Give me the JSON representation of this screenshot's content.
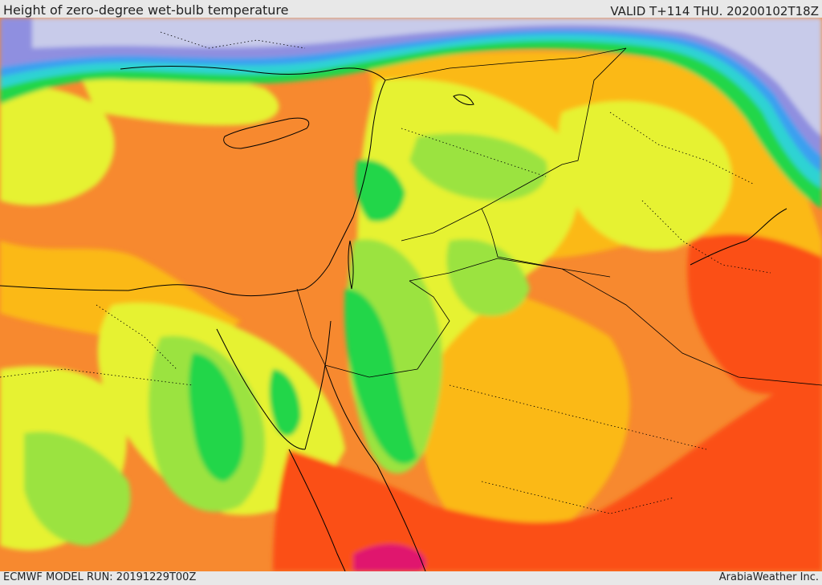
{
  "header": {
    "title": "Height of zero-degree wet-bulb temperature",
    "valid_time": "VALID T+114 THU. 20200102T18Z"
  },
  "footer": {
    "model_run": "ECMWF MODEL RUN: 20191229T00Z",
    "credit": "ArabiaWeather Inc."
  },
  "map": {
    "region": "Eastern Mediterranean and Middle East",
    "colors": {
      "lowest": "#c8cbea",
      "violet": "#8f8fe0",
      "blue": "#3aa0f0",
      "cyan": "#2ed3d3",
      "green": "#22d64a",
      "light_green": "#9be340",
      "yellow_green": "#e6f231",
      "orange_yellow": "#fbb914",
      "orange": "#f7892f",
      "red_orange": "#fb5016",
      "magenta": "#e0196e"
    }
  }
}
